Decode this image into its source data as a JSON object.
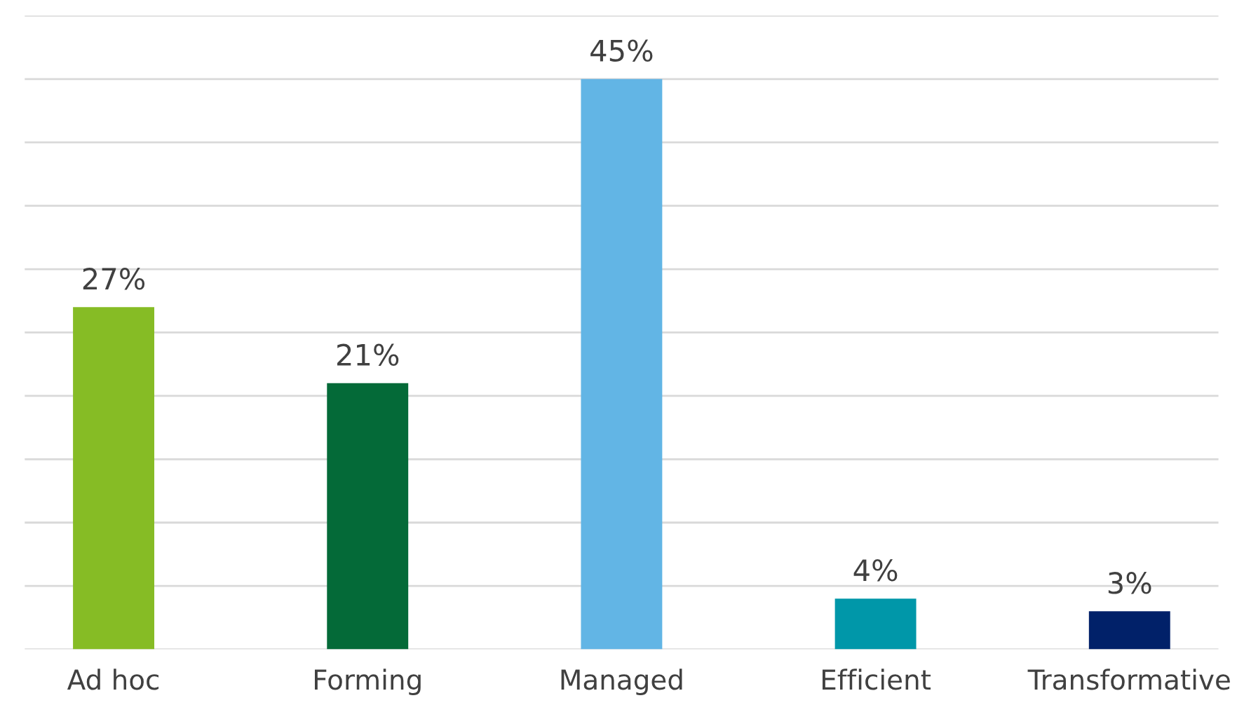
{
  "chart_data": {
    "type": "bar",
    "categories": [
      "Ad hoc",
      "Forming",
      "Managed",
      "Efficient",
      "Transformative"
    ],
    "values": [
      27,
      21,
      45,
      4,
      3
    ],
    "colors": [
      "#86bc25",
      "#046a38",
      "#62b5e5",
      "#0097a9",
      "#012169"
    ],
    "value_labels": [
      "27%",
      "21%",
      "45%",
      "4%",
      "3%"
    ],
    "ylim": [
      0,
      50
    ],
    "yticks": [
      {
        "value": 0,
        "label": null
      },
      {
        "value": 5,
        "label": null
      },
      {
        "value": 10,
        "label": null
      },
      {
        "value": 15,
        "label": null
      },
      {
        "value": 20,
        "label": null
      },
      {
        "value": 25,
        "label": null
      },
      {
        "value": 30,
        "label": null
      },
      {
        "value": 35,
        "label": null
      },
      {
        "value": 40,
        "label": null
      },
      {
        "value": 45,
        "label": null
      },
      {
        "value": 50,
        "label": null
      }
    ],
    "tick_labels": "x",
    "grid": "y",
    "legend": false
  }
}
